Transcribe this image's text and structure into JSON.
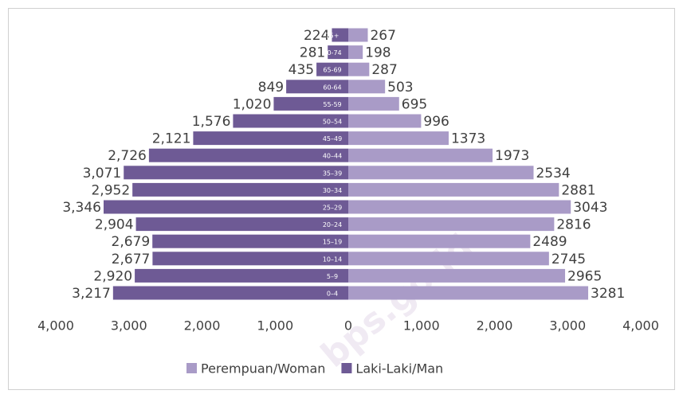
{
  "chart_data": {
    "type": "pyramid",
    "categories": [
      "75+",
      "70-74",
      "65-69",
      "60-64",
      "55-59",
      "50–54",
      "45–49",
      "40–44",
      "35–39",
      "30–34",
      "25–29",
      "20–24",
      "15–19",
      "10–14",
      "5–9",
      "0–4"
    ],
    "series": [
      {
        "name": "Perempuan/Woman",
        "color": "#a99bc7",
        "side": "right",
        "values": [
          267,
          198,
          287,
          503,
          695,
          996,
          1373,
          1973,
          2534,
          2881,
          3043,
          2816,
          2489,
          2745,
          2965,
          3281
        ]
      },
      {
        "name": "Laki-Laki/Man",
        "color": "#6e5a95",
        "side": "left",
        "values": [
          224,
          281,
          435,
          849,
          1020,
          1576,
          2121,
          2726,
          3071,
          2952,
          3346,
          2904,
          2679,
          2677,
          2920,
          3217
        ],
        "value_labels": [
          "224",
          "281",
          "435",
          "849",
          "1,020",
          "1,576",
          "2,121",
          "2,726",
          "3,071",
          "2,952",
          "3,346",
          "2,904",
          "2,679",
          "2,677",
          "2,920",
          "3,217"
        ]
      }
    ],
    "xlim": [
      -4000,
      4000
    ],
    "xticks": [
      {
        "value": -4000,
        "label": "4,000"
      },
      {
        "value": -3000,
        "label": "3,000"
      },
      {
        "value": -2000,
        "label": "2,000"
      },
      {
        "value": -1000,
        "label": "1,000"
      },
      0,
      {
        "value": 1000,
        "label": "1,000"
      },
      {
        "value": 2000,
        "label": "2,000"
      },
      {
        "value": 3000,
        "label": "3,000"
      },
      {
        "value": 4000,
        "label": "4,000"
      }
    ],
    "legend": "bottom",
    "watermark": "bps.go.id"
  }
}
